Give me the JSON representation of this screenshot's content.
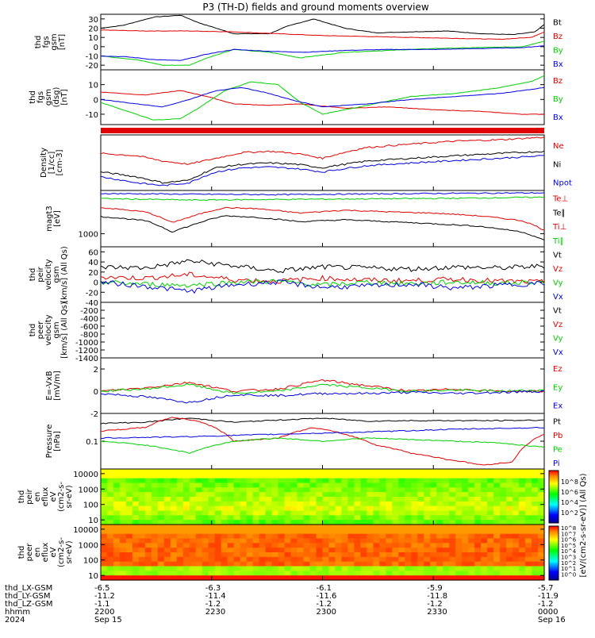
{
  "title": "P3 (TH-D) fields and ground moments overview",
  "colors": {
    "black": "#000000",
    "red": "#e00000",
    "green": "#00d000",
    "blue": "#0000e0"
  },
  "chart_data": [
    {
      "type": "line",
      "ylabel": [
        "thd",
        "fgs",
        "gsm",
        "[nT]"
      ],
      "ylim": [
        -25,
        35
      ],
      "yticks": [
        -20,
        -10,
        0,
        10,
        20,
        30
      ],
      "legend": [
        {
          "label": "Bt",
          "color": "black"
        },
        {
          "label": "Bz",
          "color": "red"
        },
        {
          "label": "By",
          "color": "green"
        },
        {
          "label": "Bx",
          "color": "blue"
        }
      ],
      "series": [
        {
          "name": "Bt",
          "color": "black",
          "x": [
            0,
            0.05,
            0.12,
            0.18,
            0.22,
            0.3,
            0.38,
            0.42,
            0.48,
            0.55,
            0.62,
            0.7,
            0.78,
            0.86,
            0.93,
            0.98,
            1
          ],
          "y": [
            20,
            23,
            32,
            34,
            26,
            14,
            14,
            22,
            30,
            20,
            15,
            16,
            17,
            14,
            13,
            16,
            24
          ]
        },
        {
          "name": "Bz",
          "color": "red",
          "x": [
            0,
            0.1,
            0.2,
            0.3,
            0.4,
            0.5,
            0.6,
            0.7,
            0.8,
            0.9,
            0.97,
            1
          ],
          "y": [
            18,
            17,
            17,
            16,
            14,
            12,
            11,
            10,
            9,
            8,
            10,
            16
          ]
        },
        {
          "name": "By",
          "color": "green",
          "x": [
            0,
            0.08,
            0.14,
            0.2,
            0.24,
            0.3,
            0.38,
            0.45,
            0.55,
            0.65,
            0.75,
            0.85,
            0.95,
            1
          ],
          "y": [
            -10,
            -14,
            -20,
            -20,
            -12,
            -3,
            -6,
            -12,
            -6,
            -4,
            -2,
            -1,
            0,
            6
          ]
        },
        {
          "name": "Bx",
          "color": "blue",
          "x": [
            0,
            0.06,
            0.12,
            0.18,
            0.24,
            0.3,
            0.38,
            0.46,
            0.55,
            0.65,
            0.75,
            0.85,
            0.95,
            1
          ],
          "y": [
            -10,
            -11,
            -14,
            -15,
            -8,
            -3,
            -5,
            -6,
            -4,
            -3,
            -3,
            -2,
            -1,
            1
          ]
        }
      ]
    },
    {
      "type": "line",
      "ylabel": [
        "thd",
        "fgs",
        "gsm",
        "(dsg)",
        "[nT]"
      ],
      "ylim": [
        -17,
        20
      ],
      "yticks": [
        -10,
        0,
        10
      ],
      "legend": [
        {
          "label": "Bz",
          "color": "red"
        },
        {
          "label": "By",
          "color": "green"
        },
        {
          "label": "Bx",
          "color": "blue"
        }
      ],
      "series": [
        {
          "name": "Bz",
          "color": "red",
          "x": [
            0,
            0.1,
            0.18,
            0.24,
            0.3,
            0.38,
            0.45,
            0.55,
            0.65,
            0.75,
            0.85,
            0.95,
            1
          ],
          "y": [
            5,
            3,
            6,
            2,
            -3,
            -4,
            -3,
            -6,
            -5,
            -7,
            -8,
            -10,
            -10
          ]
        },
        {
          "name": "By",
          "color": "green",
          "x": [
            0,
            0.06,
            0.12,
            0.18,
            0.22,
            0.28,
            0.34,
            0.4,
            0.45,
            0.5,
            0.6,
            0.7,
            0.8,
            0.9,
            0.97,
            1
          ],
          "y": [
            -2,
            -8,
            -14,
            -13,
            -6,
            6,
            12,
            10,
            -2,
            -10,
            -4,
            2,
            4,
            8,
            12,
            16
          ]
        },
        {
          "name": "Bx",
          "color": "blue",
          "x": [
            0,
            0.08,
            0.14,
            0.2,
            0.26,
            0.32,
            0.38,
            0.44,
            0.5,
            0.6,
            0.7,
            0.8,
            0.9,
            1
          ],
          "y": [
            0,
            -3,
            -5,
            0,
            6,
            8,
            4,
            -1,
            -5,
            -3,
            0,
            2,
            4,
            8
          ]
        }
      ]
    },
    {
      "type": "band",
      "color": "red"
    },
    {
      "type": "line",
      "ylabel": [
        "Density",
        "[1/cc]",
        "[cm-3]"
      ],
      "ylim": [
        0.15,
        1.2
      ],
      "legend": [
        {
          "label": "Ne",
          "color": "red"
        },
        {
          "label": "Ni",
          "color": "black"
        },
        {
          "label": "Npot",
          "color": "blue"
        }
      ],
      "series": [
        {
          "name": "Ne",
          "color": "red",
          "x": [
            0,
            0.08,
            0.14,
            0.2,
            0.26,
            0.32,
            0.38,
            0.44,
            0.5,
            0.6,
            0.7,
            0.8,
            0.9,
            1
          ],
          "y": [
            0.6,
            0.55,
            0.45,
            0.4,
            0.5,
            0.62,
            0.65,
            0.6,
            0.5,
            0.75,
            0.85,
            0.95,
            1.0,
            1.1
          ]
        },
        {
          "name": "Ni",
          "color": "black",
          "x": [
            0,
            0.08,
            0.14,
            0.2,
            0.26,
            0.32,
            0.38,
            0.44,
            0.5,
            0.6,
            0.7,
            0.8,
            0.9,
            1
          ],
          "y": [
            0.3,
            0.25,
            0.2,
            0.22,
            0.35,
            0.4,
            0.42,
            0.4,
            0.35,
            0.45,
            0.5,
            0.55,
            0.6,
            0.65
          ]
        },
        {
          "name": "Npot",
          "color": "blue",
          "x": [
            0,
            0.08,
            0.14,
            0.2,
            0.26,
            0.32,
            0.38,
            0.44,
            0.5,
            0.6,
            0.7,
            0.8,
            0.9,
            1
          ],
          "y": [
            0.25,
            0.2,
            0.18,
            0.2,
            0.3,
            0.35,
            0.36,
            0.34,
            0.3,
            0.38,
            0.42,
            0.46,
            0.5,
            0.55
          ]
        }
      ]
    },
    {
      "type": "line",
      "ylabel": [
        "magt3",
        "[eV]"
      ],
      "yticks": [
        1000
      ],
      "ylim": [
        500,
        10000
      ],
      "legend": [
        {
          "label": "Te⊥",
          "color": "red"
        },
        {
          "label": "Te∥",
          "color": "black"
        },
        {
          "label": "Ti⊥",
          "color": "red"
        },
        {
          "label": "Ti∥",
          "color": "green"
        }
      ],
      "series": [
        {
          "name": "Ti⊥",
          "color": "blue",
          "x": [
            0,
            0.2,
            0.4,
            0.6,
            0.8,
            1
          ],
          "y": [
            8500,
            8200,
            8000,
            8300,
            8600,
            8800
          ]
        },
        {
          "name": "Ti∥",
          "color": "green",
          "x": [
            0,
            0.2,
            0.4,
            0.6,
            0.8,
            1
          ],
          "y": [
            6500,
            6000,
            6200,
            6400,
            6600,
            7000
          ]
        },
        {
          "name": "Te⊥",
          "color": "red",
          "x": [
            0,
            0.1,
            0.16,
            0.2,
            0.28,
            0.35,
            0.45,
            0.55,
            0.65,
            0.75,
            0.85,
            0.95,
            1
          ],
          "y": [
            4000,
            3200,
            1800,
            2400,
            4000,
            3800,
            3000,
            3500,
            3200,
            3000,
            2600,
            2000,
            1200
          ]
        },
        {
          "name": "Te∥",
          "color": "black",
          "x": [
            0,
            0.1,
            0.16,
            0.2,
            0.28,
            0.35,
            0.45,
            0.55,
            0.65,
            0.75,
            0.85,
            0.95,
            1
          ],
          "y": [
            2500,
            2000,
            1100,
            1500,
            2600,
            2400,
            1900,
            2100,
            1900,
            1700,
            1500,
            1100,
            700
          ]
        }
      ]
    },
    {
      "type": "line",
      "ylabel": [
        "thd",
        "peir",
        "velocity",
        "gsm",
        "[km/s] (All Qs)"
      ],
      "ylim": [
        -40,
        70
      ],
      "yticks": [
        -40,
        -20,
        0,
        20,
        40,
        60
      ],
      "legend": [
        {
          "label": "Vt",
          "color": "black"
        },
        {
          "label": "Vz",
          "color": "red"
        },
        {
          "label": "Vy",
          "color": "green"
        },
        {
          "label": "Vx",
          "color": "blue"
        }
      ],
      "series": [
        {
          "name": "Vt",
          "color": "black",
          "x": [
            0,
            0.1,
            0.2,
            0.3,
            0.4,
            0.5,
            0.6,
            0.7,
            0.8,
            0.9,
            1
          ],
          "y": [
            30,
            28,
            42,
            32,
            22,
            30,
            28,
            26,
            30,
            28,
            32
          ]
        },
        {
          "name": "Vz",
          "color": "red",
          "x": [
            0,
            0.1,
            0.2,
            0.3,
            0.4,
            0.5,
            0.6,
            0.7,
            0.8,
            0.9,
            1
          ],
          "y": [
            10,
            8,
            15,
            5,
            2,
            8,
            4,
            3,
            6,
            2,
            0
          ]
        },
        {
          "name": "Vy",
          "color": "green",
          "x": [
            0,
            0.1,
            0.2,
            0.3,
            0.4,
            0.5,
            0.6,
            0.7,
            0.8,
            0.9,
            1
          ],
          "y": [
            0,
            -4,
            -6,
            0,
            2,
            -6,
            0,
            -3,
            0,
            -2,
            0
          ]
        },
        {
          "name": "Vx",
          "color": "blue",
          "x": [
            0,
            0.1,
            0.2,
            0.3,
            0.4,
            0.5,
            0.6,
            0.7,
            0.8,
            0.9,
            1
          ],
          "y": [
            0,
            -8,
            -18,
            -5,
            0,
            -10,
            -8,
            -4,
            -12,
            -6,
            -2
          ]
        }
      ]
    },
    {
      "type": "line",
      "ylabel": [
        "thd",
        "peer",
        "velocity",
        "gsm",
        "[km/s] (All Qs)"
      ],
      "ylim": [
        -1400,
        0
      ],
      "yticks": [
        -200,
        -400,
        -600,
        -800,
        -1000,
        -1200,
        -1400
      ],
      "legend": [
        {
          "label": "Vt",
          "color": "black"
        },
        {
          "label": "Vz",
          "color": "red"
        },
        {
          "label": "Vy",
          "color": "green"
        },
        {
          "label": "Vx",
          "color": "blue"
        }
      ],
      "series": []
    },
    {
      "type": "line",
      "ylabel": [
        "E=-VxB",
        "[mV/m]"
      ],
      "ylim": [
        -2,
        3
      ],
      "yticks": [
        -2,
        0,
        2
      ],
      "legend": [
        {
          "label": "Ez",
          "color": "red"
        },
        {
          "label": "Ey",
          "color": "green"
        },
        {
          "label": "Ex",
          "color": "blue"
        }
      ],
      "series": [
        {
          "name": "Ez",
          "color": "red",
          "x": [
            0,
            0.1,
            0.2,
            0.3,
            0.4,
            0.5,
            0.6,
            0.7,
            0.8,
            0.9,
            1
          ],
          "y": [
            0,
            0.3,
            0.8,
            0,
            0.2,
            1.0,
            0.5,
            0,
            0.2,
            0,
            0
          ]
        },
        {
          "name": "Ey",
          "color": "green",
          "x": [
            0,
            0.1,
            0.2,
            0.3,
            0.4,
            0.5,
            0.6,
            0.7,
            0.8,
            0.9,
            1
          ],
          "y": [
            0,
            0.2,
            0.6,
            -0.2,
            0,
            0.6,
            0.3,
            0,
            0.1,
            0,
            0.1
          ]
        },
        {
          "name": "Ex",
          "color": "blue",
          "x": [
            0,
            0.1,
            0.2,
            0.3,
            0.4,
            0.5,
            0.6,
            0.7,
            0.8,
            0.9,
            1
          ],
          "y": [
            -0.2,
            -0.5,
            -1.0,
            -0.3,
            -0.4,
            -0.2,
            -0.2,
            -0.1,
            -0.2,
            -0.1,
            0
          ]
        }
      ]
    },
    {
      "type": "line",
      "ylabel": [
        "Pressure",
        "[nPa]"
      ],
      "yticks": [
        0.1
      ],
      "ylim": [
        0.02,
        0.5
      ],
      "legend": [
        {
          "label": "Pt",
          "color": "black"
        },
        {
          "label": "Pb",
          "color": "red"
        },
        {
          "label": "Pe",
          "color": "green"
        },
        {
          "label": "Pi",
          "color": "blue"
        }
      ],
      "series": [
        {
          "name": "Pt",
          "color": "black",
          "x": [
            0,
            0.1,
            0.2,
            0.3,
            0.4,
            0.5,
            0.6,
            0.7,
            0.8,
            0.9,
            1
          ],
          "y": [
            0.28,
            0.3,
            0.38,
            0.3,
            0.34,
            0.38,
            0.32,
            0.33,
            0.33,
            0.33,
            0.34
          ]
        },
        {
          "name": "Pb",
          "color": "red",
          "x": [
            0,
            0.1,
            0.16,
            0.22,
            0.3,
            0.4,
            0.48,
            0.55,
            0.62,
            0.7,
            0.78,
            0.86,
            0.93,
            1
          ],
          "y": [
            0.18,
            0.22,
            0.4,
            0.32,
            0.1,
            0.12,
            0.22,
            0.15,
            0.08,
            0.05,
            0.035,
            0.025,
            0.03,
            0.15
          ]
        },
        {
          "name": "Pe",
          "color": "green",
          "x": [
            0,
            0.1,
            0.2,
            0.3,
            0.4,
            0.5,
            0.6,
            0.7,
            0.8,
            0.9,
            1
          ],
          "y": [
            0.1,
            0.08,
            0.05,
            0.1,
            0.12,
            0.1,
            0.12,
            0.11,
            0.1,
            0.09,
            0.07
          ]
        },
        {
          "name": "Pi",
          "color": "blue",
          "x": [
            0,
            0.2,
            0.4,
            0.6,
            0.8,
            1
          ],
          "y": [
            0.12,
            0.13,
            0.15,
            0.17,
            0.2,
            0.22
          ]
        }
      ]
    },
    {
      "type": "heatmap",
      "ylabel": [
        "thd",
        "peir",
        "en",
        "eflux",
        "eV",
        "(cm2-s-",
        "sr-eV)"
      ],
      "yticks": [
        10,
        100,
        1000,
        10000
      ],
      "ylim": [
        5,
        20000
      ],
      "palette": "ion"
    },
    {
      "type": "heatmap",
      "ylabel": [
        "thd",
        "peer",
        "en",
        "eflux",
        "eV",
        "(cm2-s-",
        "sr-eV)"
      ],
      "yticks": [
        10,
        100,
        1000,
        10000
      ],
      "ylim": [
        5,
        20000
      ],
      "palette": "electron"
    }
  ],
  "colorbar": {
    "label": "[eV/(cm2-s-sr-eV)] (All Qs)",
    "upper_ticks": [
      "10^8",
      "10^6",
      "10^4",
      "10^2"
    ],
    "lower_ticks": [
      "10^8",
      "10^7",
      "10^6",
      "10^5",
      "10^4",
      "10^3",
      "10^2",
      "10^1",
      "10^0"
    ]
  },
  "xaxis": {
    "tick_positions": [
      "-6.5",
      "-6.3",
      "-6.1",
      "-5.9",
      "-5.7"
    ],
    "rows": [
      {
        "label": "thd_LX-GSM",
        "values": [
          "-6.5",
          "-6.3",
          "-6.1",
          "-5.9",
          "-5.7"
        ]
      },
      {
        "label": "thd_LY-GSM",
        "values": [
          "-11.2",
          "-11.4",
          "-11.6",
          "-11.8",
          "-11.9"
        ]
      },
      {
        "label": "thd_LZ-GSM",
        "values": [
          "-1.1",
          "-1.2",
          "-1.2",
          "-1.2",
          "-1.2"
        ]
      },
      {
        "label": "hhmm",
        "values": [
          "2200",
          "2230",
          "2300",
          "2330",
          "0000"
        ]
      },
      {
        "label": "2024",
        "values": [
          "Sep 15",
          "",
          "",
          "",
          "Sep 16"
        ]
      }
    ]
  }
}
